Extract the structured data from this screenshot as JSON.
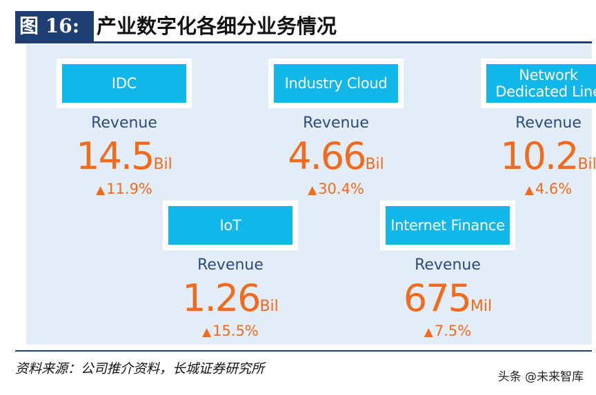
{
  "header": {
    "figure_label": "图 16:",
    "title": "产业数字化各细分业务情况"
  },
  "chart_data": {
    "type": "table",
    "title": "产业数字化各细分业务情况",
    "metric_label": "Revenue",
    "change_icon": "arrow-up-icon",
    "accent_color": "#f26a1b",
    "box_color": "#12b7ea",
    "panel_color": "#e3edf8",
    "items": [
      {
        "name": "IDC",
        "value": "14.5",
        "unit": "Bil",
        "change": "11.9%"
      },
      {
        "name": "Industry Cloud",
        "value": "4.66",
        "unit": "Bil",
        "change": "30.4%"
      },
      {
        "name": "Network\nDedicated Line",
        "value": "10.2",
        "unit": "Bil",
        "change": "4.6%"
      },
      {
        "name": "IoT",
        "value": "1.26",
        "unit": "Bil",
        "change": "15.5%"
      },
      {
        "name": "Internet Finance",
        "value": "675",
        "unit": "Mil",
        "change": "7.5%"
      }
    ]
  },
  "footer": {
    "source": "资料来源：公司推介资料，长城证券研究所",
    "watermark": "头条 @未来智库"
  }
}
